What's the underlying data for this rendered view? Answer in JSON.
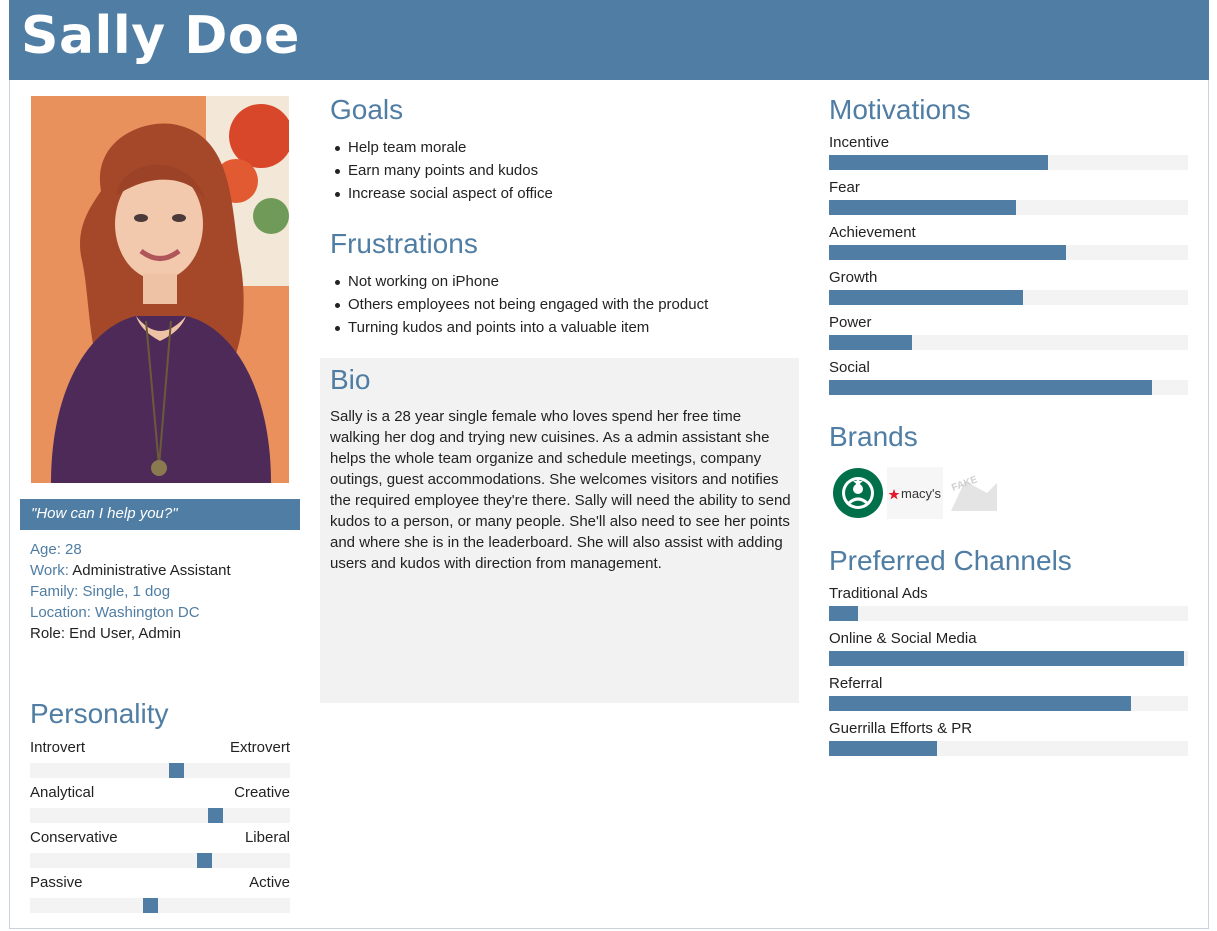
{
  "persona": {
    "name": "Sally Doe",
    "quote": "\"How can I help you?\""
  },
  "info": {
    "age": "Age: 28",
    "work_label": "Work:",
    "work_value": " Administrative Assistant",
    "family": "Family: Single, 1 dog",
    "location": "Location: Washington DC",
    "role": "Role: End User, Admin"
  },
  "personality": {
    "title": "Personality",
    "items": [
      {
        "left": "Introvert",
        "right": "Extrovert",
        "value": 0.56
      },
      {
        "left": "Analytical",
        "right": "Creative",
        "value": 0.71
      },
      {
        "left": "Conservative",
        "right": "Liberal",
        "value": 0.67
      },
      {
        "left": "Passive",
        "right": "Active",
        "value": 0.46
      }
    ]
  },
  "goals": {
    "title": "Goals",
    "items": [
      "Help team morale",
      "Earn many points and kudos",
      "Increase social aspect of office"
    ]
  },
  "frustrations": {
    "title": "Frustrations",
    "items": [
      "Not working on iPhone",
      "Others employees not being engaged with the product",
      "Turning kudos and points into a valuable item"
    ]
  },
  "bio": {
    "title": "Bio",
    "text": "Sally is a 28 year single female who loves spend her free time walking her dog and trying new cuisines. As a admin assistant she helps the whole team organize and schedule meetings, company outings, guest accommodations. She welcomes visitors and notifies the required employee they're there. Sally will need the ability to send kudos to a person, or many people. She'll also need to see her points and where she is in the leaderboard. She will also assist with adding users and kudos with direction from management."
  },
  "motivations": {
    "title": "Motivations",
    "items": [
      {
        "label": "Incentive",
        "value": 0.61
      },
      {
        "label": "Fear",
        "value": 0.52
      },
      {
        "label": "Achievement",
        "value": 0.66
      },
      {
        "label": "Growth",
        "value": 0.54
      },
      {
        "label": "Power",
        "value": 0.23
      },
      {
        "label": "Social",
        "value": 0.9
      }
    ]
  },
  "brands": {
    "title": "Brands",
    "items": [
      {
        "icon": "starbucks-logo"
      },
      {
        "icon": "macys-logo",
        "text": "macy's"
      },
      {
        "icon": "fake-brand-logo",
        "text": "FAKE"
      }
    ]
  },
  "channels": {
    "title": "Preferred Channels",
    "items": [
      {
        "label": "Traditional Ads",
        "value": 0.08
      },
      {
        "label": "Online & Social Media",
        "value": 0.99
      },
      {
        "label": "Referral",
        "value": 0.84
      },
      {
        "label": "Guerrilla Efforts & PR",
        "value": 0.3
      }
    ]
  },
  "colors": {
    "accent": "#4f7da3",
    "track": "#f3f3f3",
    "bio_bg": "#f2f2f2"
  }
}
